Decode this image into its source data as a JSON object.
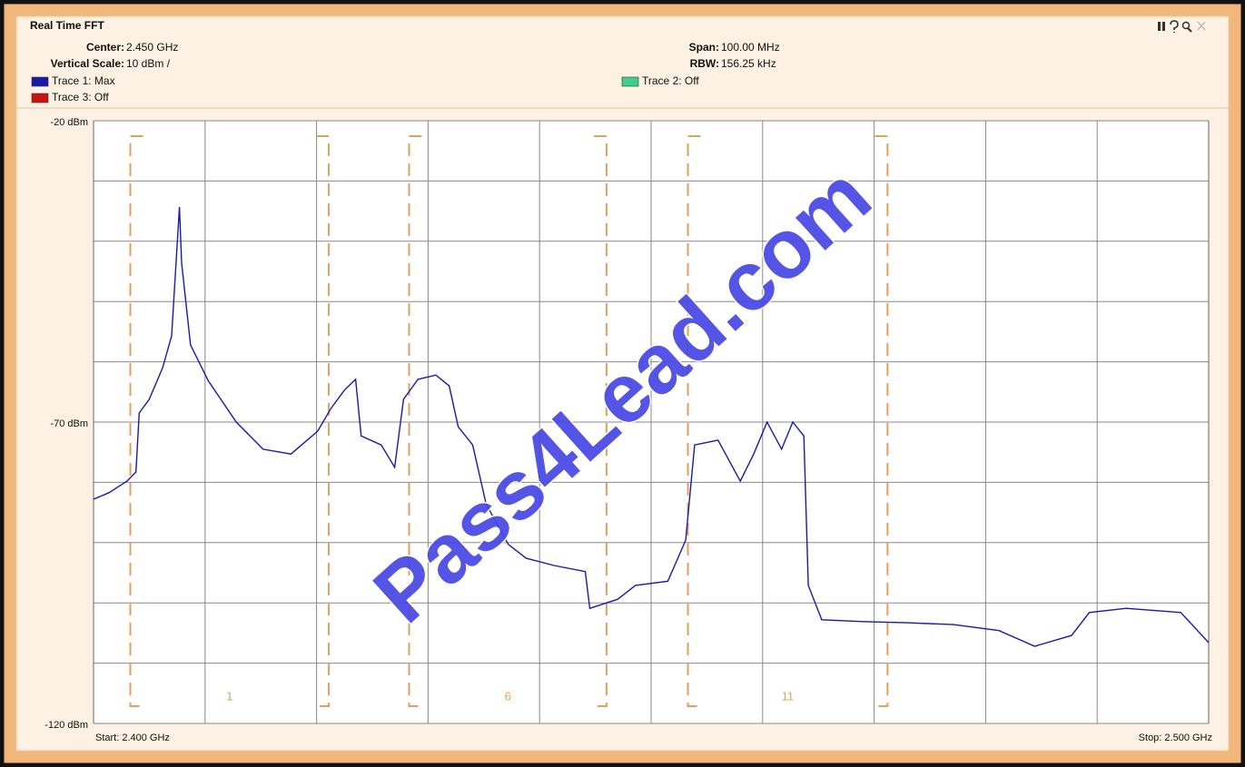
{
  "header": {
    "title": "Real Time FFT",
    "center": {
      "label": "Center:",
      "value": "2.450 GHz"
    },
    "vertical_scale": {
      "label": "Vertical Scale:",
      "value": "10 dBm /"
    },
    "span": {
      "label": "Span:",
      "value": "100.00 MHz"
    },
    "rbw": {
      "label": "RBW:",
      "value": "156.25 kHz"
    }
  },
  "chart_data": {
    "type": "line",
    "ylim": [
      -120,
      -20
    ],
    "yticks": [
      {
        "value": -20,
        "label": "-20 dBm"
      },
      {
        "value": -70,
        "label": "-70 dBm"
      },
      {
        "value": -120,
        "label": "-120 dBm"
      }
    ],
    "ygrid": [
      -30,
      -40,
      -50,
      -60,
      -80,
      -90,
      -100,
      -110
    ],
    "xlim": [
      2.4,
      2.5
    ],
    "xgrid": [
      2.41,
      2.42,
      2.43,
      2.44,
      2.45,
      2.46,
      2.47,
      2.48,
      2.49
    ],
    "start_label": "Start: 2.400 GHz",
    "stop_label": "Stop: 2.500 GHz",
    "grid": true,
    "x": [
      2.4,
      2.4014,
      2.403,
      2.4038,
      2.4041,
      2.405,
      2.4062,
      2.407,
      2.4077,
      2.4079,
      2.4087,
      2.4103,
      2.4128,
      2.4152,
      2.4177,
      2.4201,
      2.4213,
      2.4225,
      2.4235,
      2.424,
      2.4258,
      2.427,
      2.4278,
      2.4291,
      2.4307,
      2.4319,
      2.4327,
      2.434,
      2.4352,
      2.4372,
      2.4388,
      2.4413,
      2.4441,
      2.4445,
      2.447,
      2.4486,
      2.4515,
      2.4531,
      2.4539,
      2.456,
      2.458,
      2.4592,
      2.4604,
      2.4617,
      2.4627,
      2.4637,
      2.4641,
      2.4649,
      2.4653,
      2.469,
      2.473,
      2.4771,
      2.4812,
      2.4844,
      2.4877,
      2.4893,
      2.4926,
      2.4975,
      2.5
    ],
    "series": [
      {
        "name": "Trace 1: Max",
        "color": "#1a1aa8",
        "values": [
          -82.8,
          -81.7,
          -79.8,
          -78.3,
          -68.5,
          -66.2,
          -61.0,
          -55.7,
          -34.3,
          -43.6,
          -57.2,
          -63.2,
          -70.0,
          -74.5,
          -75.3,
          -71.5,
          -67.7,
          -64.7,
          -62.9,
          -72.3,
          -73.8,
          -77.5,
          -66.2,
          -62.9,
          -62.2,
          -64.0,
          -70.8,
          -73.8,
          -83.6,
          -90.3,
          -92.6,
          -93.8,
          -94.8,
          -100.9,
          -99.4,
          -97.1,
          -96.4,
          -89.6,
          -73.8,
          -73.0,
          -79.8,
          -75.3,
          -70.0,
          -74.5,
          -70.0,
          -72.3,
          -97.1,
          -100.9,
          -102.8,
          -103.1,
          -103.3,
          -103.6,
          -104.6,
          -107.2,
          -105.4,
          -101.6,
          -100.9,
          -101.6,
          -106.6
        ]
      }
    ],
    "inactive_traces": [
      {
        "name": "Trace 2: Off",
        "color": "#3fcf8e"
      },
      {
        "name": "Trace 3: Off",
        "color": "#cc1111"
      }
    ],
    "channels": [
      {
        "label": "1",
        "start": 2.4033,
        "end": 2.4211
      },
      {
        "label": "6",
        "start": 2.4283,
        "end": 2.446
      },
      {
        "label": "11",
        "start": 2.4533,
        "end": 2.4712
      }
    ],
    "channel_color": "#e0a060",
    "watermark": "Pass4Lead.com"
  }
}
